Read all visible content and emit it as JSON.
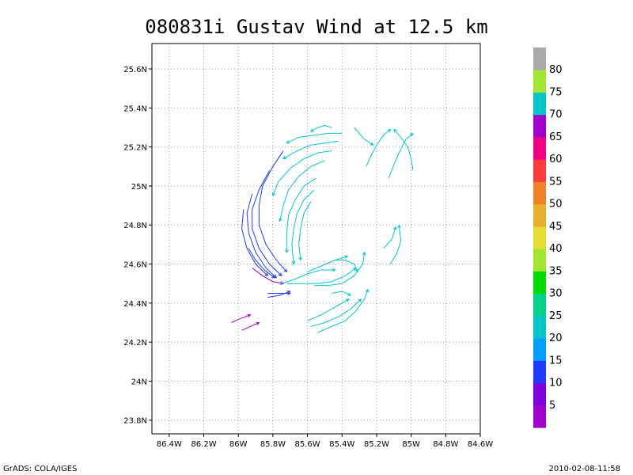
{
  "chart_data": {
    "type": "vector-streamline",
    "title": "080831i Gustav Wind at 12.5 km",
    "xlim": [
      -86.5,
      -84.6
    ],
    "ylim": [
      23.73,
      25.73
    ],
    "x_ticks": [
      {
        "value": -86.4,
        "label": "86.4W"
      },
      {
        "value": -86.2,
        "label": "86.2W"
      },
      {
        "value": -86.0,
        "label": "86W"
      },
      {
        "value": -85.8,
        "label": "85.8W"
      },
      {
        "value": -85.6,
        "label": "85.6W"
      },
      {
        "value": -85.4,
        "label": "85.4W"
      },
      {
        "value": -85.2,
        "label": "85.2W"
      },
      {
        "value": -85.0,
        "label": "85W"
      },
      {
        "value": -84.8,
        "label": "84.8W"
      },
      {
        "value": -84.6,
        "label": "84.6W"
      }
    ],
    "y_ticks": [
      {
        "value": 23.8,
        "label": "23.8N"
      },
      {
        "value": 24.0,
        "label": "24N"
      },
      {
        "value": 24.2,
        "label": "24.2N"
      },
      {
        "value": 24.4,
        "label": "24.4N"
      },
      {
        "value": 24.6,
        "label": "24.6N"
      },
      {
        "value": 24.8,
        "label": "24.8N"
      },
      {
        "value": 25.0,
        "label": "25N"
      },
      {
        "value": 25.2,
        "label": "25.2N"
      },
      {
        "value": 25.4,
        "label": "25.4N"
      },
      {
        "value": 25.6,
        "label": "25.6N"
      }
    ],
    "grid": true,
    "colorbar": {
      "bins": [
        {
          "color": "#a000c8",
          "label": "5"
        },
        {
          "color": "#8200dc",
          "label": "10"
        },
        {
          "color": "#1e3cff",
          "label": "15"
        },
        {
          "color": "#00a0ff",
          "label": "20"
        },
        {
          "color": "#00c8c8",
          "label": "25"
        },
        {
          "color": "#00d28c",
          "label": "30"
        },
        {
          "color": "#00dc00",
          "label": "35"
        },
        {
          "color": "#a0e632",
          "label": "40"
        },
        {
          "color": "#e6dc32",
          "label": "45"
        },
        {
          "color": "#e6af2d",
          "label": "50"
        },
        {
          "color": "#f08228",
          "label": "55"
        },
        {
          "color": "#fa3c3c",
          "label": "60"
        },
        {
          "color": "#f00082",
          "label": "65"
        },
        {
          "color": "#a000c8",
          "label": "70"
        },
        {
          "color": "#00c8c8",
          "label": "75"
        },
        {
          "color": "#a0e632",
          "label": "80"
        },
        {
          "color": "#aaaaaa",
          "label": ""
        }
      ]
    },
    "streamlines": [
      {
        "color": "#00c8c8",
        "points": [
          [
            -85.26,
            25.1
          ],
          [
            -85.23,
            25.16
          ],
          [
            -85.2,
            25.21
          ],
          [
            -85.16,
            25.26
          ],
          [
            -85.12,
            25.29
          ]
        ]
      },
      {
        "color": "#00c8c8",
        "points": [
          [
            -85.13,
            25.04
          ],
          [
            -85.1,
            25.11
          ],
          [
            -85.07,
            25.17
          ],
          [
            -85.03,
            25.24
          ],
          [
            -84.99,
            25.27
          ]
        ]
      },
      {
        "color": "#00c8c8",
        "points": [
          [
            -84.99,
            25.08
          ],
          [
            -85.0,
            25.14
          ],
          [
            -85.02,
            25.2
          ],
          [
            -85.06,
            25.25
          ],
          [
            -85.1,
            25.29
          ]
        ]
      },
      {
        "color": "#00c8c8",
        "points": [
          [
            -85.33,
            25.3
          ],
          [
            -85.3,
            25.27
          ],
          [
            -85.27,
            25.24
          ],
          [
            -85.22,
            25.21
          ]
        ]
      },
      {
        "color": "#00c8c8",
        "points": [
          [
            -85.46,
            25.3
          ],
          [
            -85.5,
            25.31
          ],
          [
            -85.54,
            25.3
          ],
          [
            -85.58,
            25.28
          ]
        ]
      },
      {
        "color": "#00c8c8",
        "points": [
          [
            -85.4,
            25.27
          ],
          [
            -85.48,
            25.27
          ],
          [
            -85.56,
            25.26
          ],
          [
            -85.65,
            25.25
          ],
          [
            -85.72,
            25.22
          ]
        ]
      },
      {
        "color": "#00c8c8",
        "points": [
          [
            -85.42,
            25.23
          ],
          [
            -85.5,
            25.22
          ],
          [
            -85.58,
            25.21
          ],
          [
            -85.66,
            25.18
          ],
          [
            -85.74,
            25.14
          ]
        ]
      },
      {
        "color": "#00c8c8",
        "points": [
          [
            -85.46,
            25.18
          ],
          [
            -85.54,
            25.17
          ],
          [
            -85.62,
            25.14
          ],
          [
            -85.7,
            25.09
          ],
          [
            -85.77,
            25.02
          ],
          [
            -85.8,
            24.95
          ]
        ]
      },
      {
        "color": "#00c8c8",
        "points": [
          [
            -85.5,
            25.13
          ],
          [
            -85.58,
            25.1
          ],
          [
            -85.65,
            25.05
          ],
          [
            -85.71,
            24.98
          ],
          [
            -85.74,
            24.9
          ],
          [
            -85.76,
            24.82
          ]
        ]
      },
      {
        "color": "#00c8c8",
        "points": [
          [
            -85.55,
            25.04
          ],
          [
            -85.62,
            25.0
          ],
          [
            -85.67,
            24.93
          ],
          [
            -85.71,
            24.85
          ],
          [
            -85.72,
            24.76
          ],
          [
            -85.72,
            24.66
          ]
        ]
      },
      {
        "color": "#00c8c8",
        "points": [
          [
            -85.56,
            24.98
          ],
          [
            -85.62,
            24.93
          ],
          [
            -85.66,
            24.86
          ],
          [
            -85.68,
            24.78
          ],
          [
            -85.69,
            24.7
          ],
          [
            -85.68,
            24.6
          ]
        ]
      },
      {
        "color": "#00c8c8",
        "points": [
          [
            -85.58,
            24.92
          ],
          [
            -85.62,
            24.86
          ],
          [
            -85.64,
            24.78
          ],
          [
            -85.65,
            24.7
          ],
          [
            -85.64,
            24.62
          ]
        ]
      },
      {
        "color": "#1e3cff",
        "points": [
          [
            -85.74,
            25.18
          ],
          [
            -85.8,
            25.1
          ],
          [
            -85.86,
            25.0
          ],
          [
            -85.88,
            24.9
          ],
          [
            -85.88,
            24.8
          ],
          [
            -85.84,
            24.7
          ],
          [
            -85.78,
            24.62
          ],
          [
            -85.72,
            24.56
          ]
        ]
      },
      {
        "color": "#1e3cff",
        "points": [
          [
            -85.82,
            25.08
          ],
          [
            -85.88,
            24.98
          ],
          [
            -85.92,
            24.88
          ],
          [
            -85.92,
            24.78
          ],
          [
            -85.88,
            24.68
          ],
          [
            -85.82,
            24.6
          ],
          [
            -85.75,
            24.54
          ]
        ]
      },
      {
        "color": "#1e3cff",
        "points": [
          [
            -85.92,
            24.96
          ],
          [
            -85.95,
            24.86
          ],
          [
            -85.94,
            24.76
          ],
          [
            -85.9,
            24.66
          ],
          [
            -85.84,
            24.58
          ],
          [
            -85.78,
            24.53
          ]
        ]
      },
      {
        "color": "#1e3cff",
        "points": [
          [
            -85.97,
            24.88
          ],
          [
            -85.98,
            24.78
          ],
          [
            -85.95,
            24.68
          ],
          [
            -85.9,
            24.6
          ],
          [
            -85.83,
            24.54
          ]
        ]
      },
      {
        "color": "#1e3cff",
        "points": [
          [
            -85.94,
            24.68
          ],
          [
            -85.9,
            24.62
          ],
          [
            -85.85,
            24.57
          ],
          [
            -85.79,
            24.53
          ]
        ]
      },
      {
        "color": "#8200dc",
        "points": [
          [
            -85.92,
            24.58
          ],
          [
            -85.86,
            24.54
          ],
          [
            -85.8,
            24.51
          ],
          [
            -85.74,
            24.5
          ]
        ]
      },
      {
        "color": "#00c8c8",
        "points": [
          [
            -85.75,
            24.5
          ],
          [
            -85.68,
            24.52
          ],
          [
            -85.6,
            24.55
          ],
          [
            -85.52,
            24.57
          ],
          [
            -85.44,
            24.57
          ]
        ]
      },
      {
        "color": "#00c8c8",
        "points": [
          [
            -85.72,
            24.5
          ],
          [
            -85.64,
            24.5
          ],
          [
            -85.55,
            24.5
          ],
          [
            -85.46,
            24.51
          ],
          [
            -85.38,
            24.54
          ],
          [
            -85.32,
            24.58
          ]
        ]
      },
      {
        "color": "#00c8c8",
        "points": [
          [
            -85.6,
            24.56
          ],
          [
            -85.52,
            24.59
          ],
          [
            -85.44,
            24.62
          ],
          [
            -85.37,
            24.64
          ]
        ]
      },
      {
        "color": "#00c8c8",
        "points": [
          [
            -85.56,
            24.49
          ],
          [
            -85.48,
            24.49
          ],
          [
            -85.4,
            24.5
          ],
          [
            -85.33,
            24.54
          ],
          [
            -85.28,
            24.6
          ],
          [
            -85.27,
            24.66
          ]
        ]
      },
      {
        "color": "#00c8c8",
        "points": [
          [
            -85.44,
            24.62
          ],
          [
            -85.38,
            24.62
          ],
          [
            -85.33,
            24.6
          ],
          [
            -85.31,
            24.56
          ]
        ]
      },
      {
        "color": "#00c8c8",
        "points": [
          [
            -85.12,
            24.6
          ],
          [
            -85.08,
            24.66
          ],
          [
            -85.06,
            24.72
          ],
          [
            -85.07,
            24.8
          ]
        ]
      },
      {
        "color": "#00c8c8",
        "points": [
          [
            -85.16,
            24.68
          ],
          [
            -85.11,
            24.73
          ],
          [
            -85.09,
            24.79
          ]
        ]
      },
      {
        "color": "#00c8c8",
        "points": [
          [
            -85.6,
            24.31
          ],
          [
            -85.52,
            24.34
          ],
          [
            -85.44,
            24.38
          ],
          [
            -85.36,
            24.42
          ]
        ]
      },
      {
        "color": "#00c8c8",
        "points": [
          [
            -85.58,
            24.28
          ],
          [
            -85.5,
            24.3
          ],
          [
            -85.42,
            24.33
          ],
          [
            -85.35,
            24.37
          ],
          [
            -85.29,
            24.42
          ]
        ]
      },
      {
        "color": "#00c8c8",
        "points": [
          [
            -85.54,
            24.25
          ],
          [
            -85.46,
            24.28
          ],
          [
            -85.38,
            24.31
          ],
          [
            -85.32,
            24.36
          ],
          [
            -85.27,
            24.42
          ],
          [
            -85.25,
            24.47
          ]
        ]
      },
      {
        "color": "#00c8c8",
        "points": [
          [
            -85.46,
            24.45
          ],
          [
            -85.4,
            24.46
          ],
          [
            -85.35,
            24.44
          ]
        ]
      },
      {
        "color": "#1e3cff",
        "points": [
          [
            -85.83,
            24.45
          ],
          [
            -85.77,
            24.45
          ],
          [
            -85.7,
            24.45
          ]
        ]
      },
      {
        "color": "#1e3cff",
        "points": [
          [
            -85.83,
            24.43
          ],
          [
            -85.76,
            24.44
          ],
          [
            -85.7,
            24.46
          ]
        ]
      },
      {
        "color": "#a000c8",
        "points": [
          [
            -86.04,
            24.3
          ],
          [
            -85.99,
            24.32
          ],
          [
            -85.93,
            24.34
          ]
        ]
      },
      {
        "color": "#a000c8",
        "points": [
          [
            -85.98,
            24.26
          ],
          [
            -85.93,
            24.28
          ],
          [
            -85.88,
            24.3
          ]
        ]
      }
    ]
  },
  "footer": {
    "left": "GrADS: COLA/IGES",
    "right": "2010-02-08-11:58"
  }
}
